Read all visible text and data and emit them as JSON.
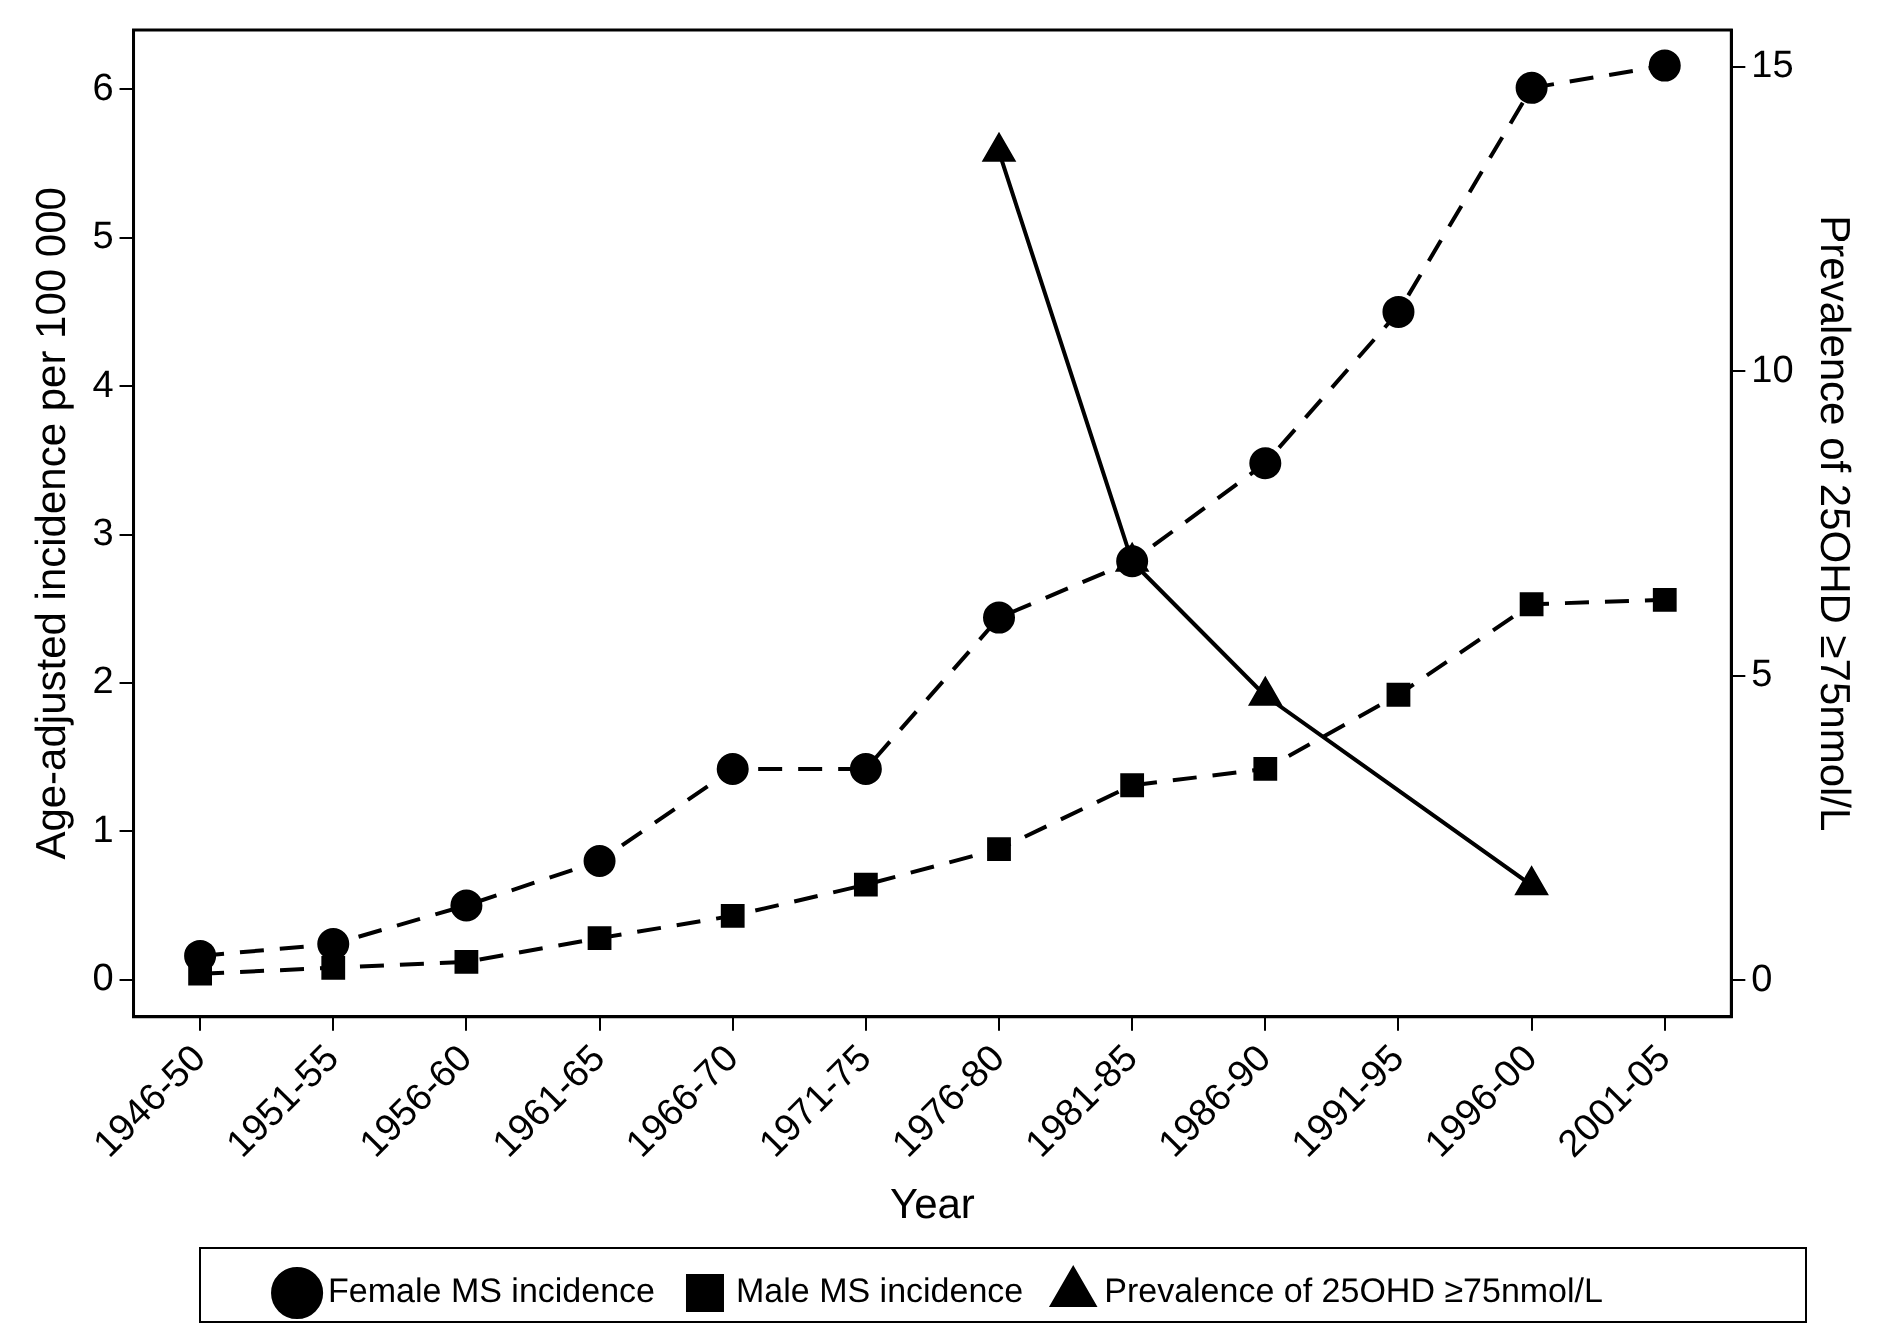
{
  "chart_data": {
    "type": "line",
    "xlabel": "Year",
    "ylabel": "Age-adjusted incidence per 100 000",
    "y2label": "Prevalence of 25OHD ≥75nmol/L",
    "categories": [
      "1946-50",
      "1951-55",
      "1956-60",
      "1961-65",
      "1966-70",
      "1971-75",
      "1976-80",
      "1981-85",
      "1986-90",
      "1991-95",
      "1996-00",
      "2001-05"
    ],
    "series": [
      {
        "name": "Female MS incidence",
        "color": "#000000",
        "marker": "circle",
        "line_style": "dashed",
        "values": [
          0.16,
          0.24,
          0.5,
          0.8,
          1.42,
          1.42,
          2.44,
          2.82,
          3.48,
          4.5,
          6.01,
          6.16
        ]
      },
      {
        "name": "Male MS incidence",
        "color": "#000000",
        "marker": "square",
        "line_style": "dashed",
        "values": [
          0.04,
          0.08,
          0.12,
          0.28,
          0.43,
          0.64,
          0.88,
          1.31,
          1.42,
          1.92,
          2.53,
          2.56
        ]
      },
      {
        "name": "Prevalence of 25OHD ≥75nmol/L",
        "color": "#000000",
        "marker": "triangle",
        "line_style": "solid",
        "axis": "y2",
        "values": [
          null,
          null,
          null,
          null,
          null,
          null,
          13.6,
          6.87,
          4.67,
          null,
          1.56,
          null
        ]
      }
    ],
    "ylim": [
      -0.25,
      6.4
    ],
    "yticks": [
      0,
      1,
      2,
      3,
      4,
      5,
      6
    ],
    "y2lim": [
      -0.6,
      15.6
    ],
    "y2ticks": [
      0,
      5,
      10,
      15
    ],
    "grid": false,
    "legend": "bottom"
  }
}
